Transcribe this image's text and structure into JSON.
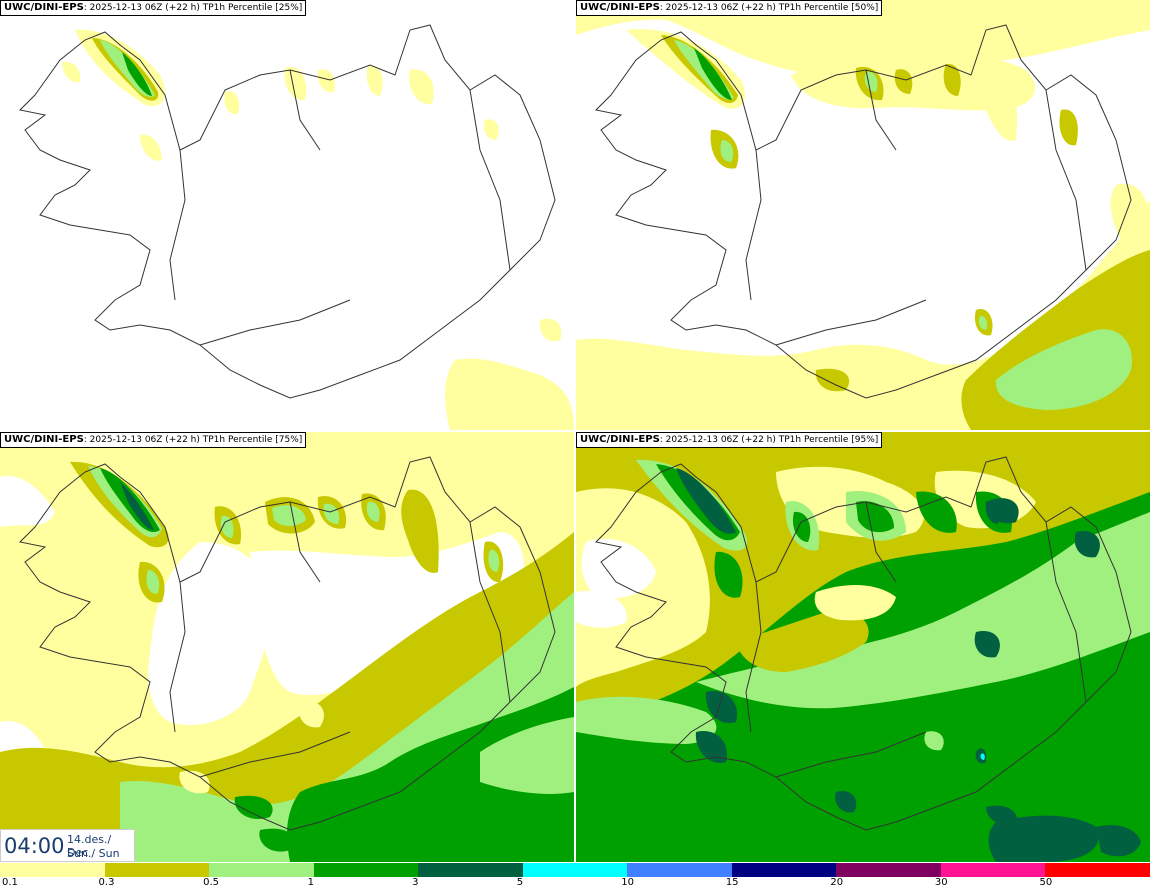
{
  "panels": [
    {
      "title_bold": "UWC/DINI-EPS",
      "run": ": 2025-12-13 06Z (+22 h)",
      "field": " TP1h Percentile [25%]"
    },
    {
      "title_bold": "UWC/DINI-EPS",
      "run": ": 2025-12-13 06Z (+22 h)",
      "field": " TP1h Percentile [50%]"
    },
    {
      "title_bold": "UWC/DINI-EPS",
      "run": ": 2025-12-13 06Z (+22 h)",
      "field": " TP1h Percentile [75%]"
    },
    {
      "title_bold": "UWC/DINI-EPS",
      "run": ": 2025-12-13 06Z (+22 h)",
      "field": " TP1h Percentile [95%]"
    }
  ],
  "valid_time": {
    "time": "04:00",
    "date_line1": "14.des./ Dec",
    "date_line2": "Sun./ Sun"
  },
  "legend": {
    "labels": [
      "0.1",
      "0.3",
      "0.5",
      "1",
      "3",
      "5",
      "10",
      "15",
      "20",
      "30",
      "50"
    ],
    "colors": [
      "#ffff9f",
      "#c8c800",
      "#a0f080",
      "#00a000",
      "#006040",
      "#00ffff",
      "#4080ff",
      "#000080",
      "#800060",
      "#ff1493",
      "#ff0000"
    ]
  },
  "colors": {
    "light_yellow": "#ffff9f",
    "olive": "#c8c800",
    "light_green": "#a0f080",
    "green": "#00a000",
    "dark_green": "#006040",
    "coast": "#333333"
  }
}
